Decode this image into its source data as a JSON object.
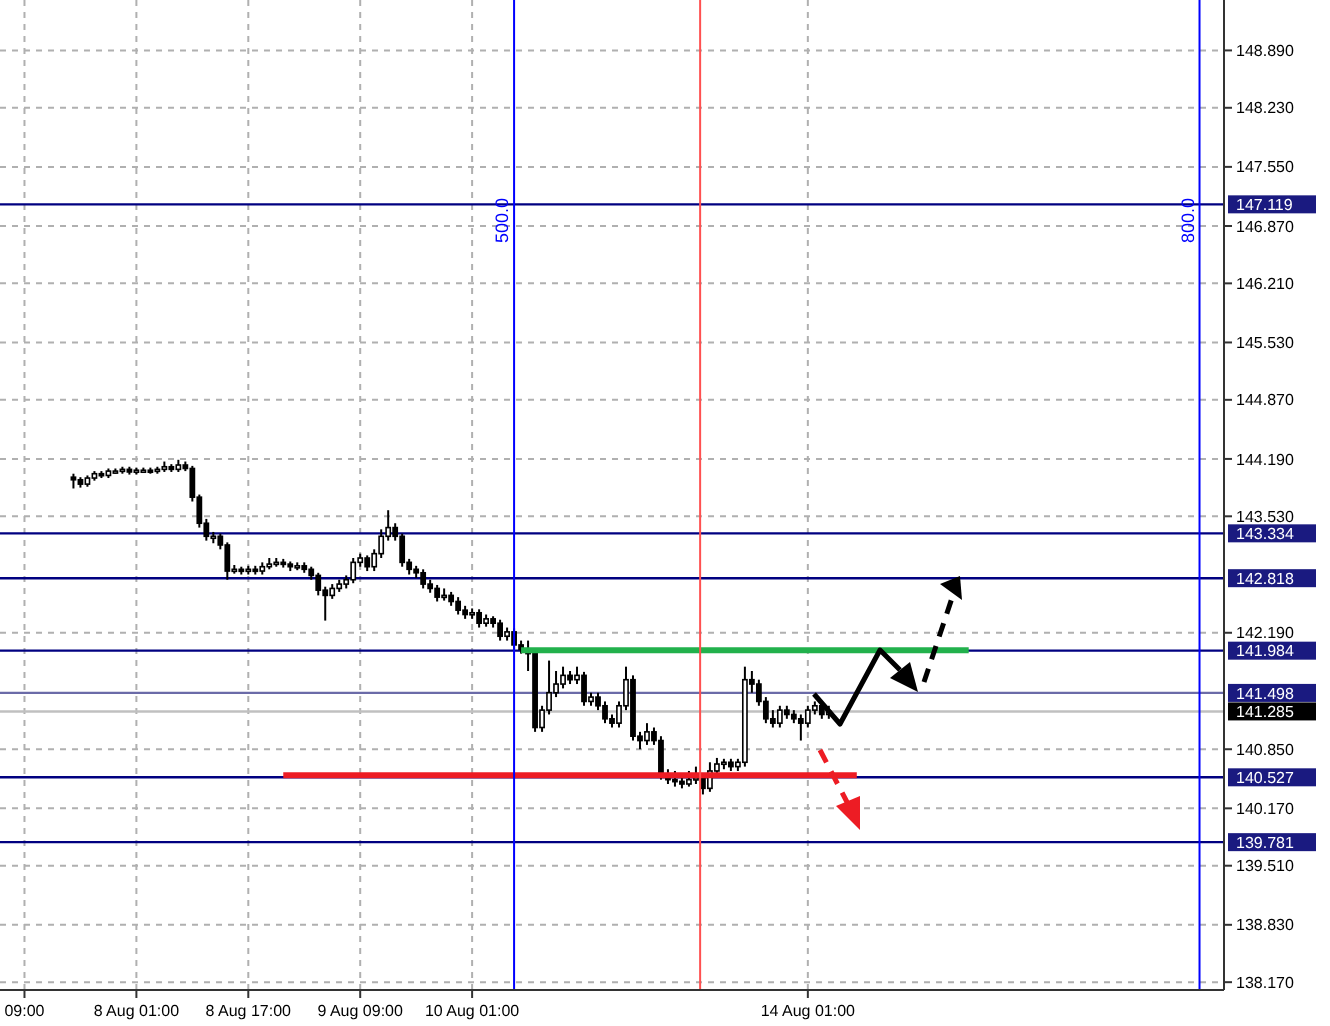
{
  "chart_data": {
    "type": "candlestick",
    "color": "#000000",
    "categories": [
      "09:00",
      null,
      null,
      null,
      null,
      null,
      null,
      null,
      null,
      null,
      null,
      null,
      null,
      null,
      null,
      null,
      "8 Aug 01:00",
      null,
      null,
      null,
      null,
      null,
      null,
      null,
      null,
      null,
      null,
      null,
      null,
      null,
      null,
      null,
      "8 Aug 17:00",
      null,
      null,
      null,
      null,
      null,
      null,
      null,
      null,
      null,
      null,
      null,
      null,
      null,
      null,
      null,
      "9 Aug 09:00",
      null,
      null,
      null,
      null,
      null,
      null,
      null,
      null,
      null,
      null,
      null,
      null,
      null,
      null,
      null,
      "10 Aug 01:00",
      null,
      null,
      null,
      null,
      null,
      null,
      null,
      null,
      null,
      null,
      null,
      null,
      null,
      null,
      null,
      null,
      null,
      null,
      null,
      null,
      null,
      null,
      null,
      null,
      null,
      null,
      null,
      null,
      null,
      null,
      null,
      null,
      null,
      null,
      null,
      null,
      null,
      null,
      null,
      null,
      null,
      null,
      null,
      null,
      null,
      null,
      null,
      "14 Aug 01:00",
      null,
      null,
      null,
      null,
      null,
      null,
      null,
      null,
      null,
      null,
      null,
      null,
      null,
      null,
      null,
      null,
      null,
      null,
      null,
      null,
      null,
      null,
      null,
      null,
      null,
      null,
      null,
      null,
      null,
      null,
      null,
      null,
      null,
      null,
      null,
      null,
      null,
      null,
      null,
      null,
      null,
      null,
      null,
      null,
      null,
      null,
      null,
      null,
      null,
      null,
      null,
      null,
      null,
      null,
      null,
      null,
      null,
      null,
      null
    ],
    "ohlc": [
      null,
      null,
      null,
      null,
      null,
      null,
      null,
      [
        143.98,
        144.02,
        143.85,
        143.95
      ],
      [
        143.95,
        143.98,
        143.86,
        143.9
      ],
      [
        143.9,
        144.0,
        143.87,
        143.97
      ],
      [
        143.97,
        144.05,
        143.94,
        144.02
      ],
      [
        144.02,
        144.05,
        143.97,
        144.0
      ],
      [
        144.0,
        144.08,
        143.97,
        144.05
      ],
      [
        144.05,
        144.08,
        144.02,
        144.05
      ],
      [
        144.05,
        144.1,
        144.02,
        144.07
      ],
      [
        144.07,
        144.1,
        144.01,
        144.04
      ],
      [
        144.04,
        144.09,
        144.01,
        144.06
      ],
      [
        144.06,
        144.09,
        144.03,
        144.06
      ],
      [
        144.06,
        144.09,
        144.02,
        144.05
      ],
      [
        144.05,
        144.1,
        144.02,
        144.07
      ],
      [
        144.07,
        144.16,
        144.04,
        144.1
      ],
      [
        144.1,
        144.13,
        144.04,
        144.07
      ],
      [
        144.07,
        144.18,
        144.04,
        144.12
      ],
      [
        144.12,
        144.16,
        144.05,
        144.08
      ],
      [
        144.08,
        144.11,
        143.7,
        143.75
      ],
      [
        143.75,
        143.78,
        143.4,
        143.45
      ],
      [
        143.45,
        143.5,
        143.25,
        143.3
      ],
      [
        143.3,
        143.35,
        143.22,
        143.3
      ],
      [
        143.3,
        143.33,
        143.15,
        143.2
      ],
      [
        143.2,
        143.23,
        142.8,
        142.9
      ],
      [
        142.9,
        142.97,
        142.87,
        142.92
      ],
      [
        142.92,
        142.95,
        142.86,
        142.9
      ],
      [
        142.9,
        142.96,
        142.86,
        142.92
      ],
      [
        142.92,
        142.96,
        142.86,
        142.9
      ],
      [
        142.9,
        143.0,
        142.86,
        142.95
      ],
      [
        142.95,
        143.05,
        142.92,
        142.98
      ],
      [
        142.98,
        143.05,
        142.95,
        143.0
      ],
      [
        143.0,
        143.04,
        142.94,
        142.98
      ],
      [
        142.98,
        143.01,
        142.9,
        142.95
      ],
      [
        142.95,
        143.0,
        142.91,
        142.96
      ],
      [
        142.96,
        143.0,
        142.88,
        142.92
      ],
      [
        142.92,
        142.95,
        142.8,
        142.85
      ],
      [
        142.85,
        142.88,
        142.62,
        142.68
      ],
      [
        142.68,
        142.72,
        142.33,
        142.62
      ],
      [
        142.62,
        142.75,
        142.58,
        142.7
      ],
      [
        142.7,
        142.8,
        142.66,
        142.75
      ],
      [
        142.75,
        142.85,
        142.7,
        142.8
      ],
      [
        142.8,
        143.05,
        142.76,
        143.0
      ],
      [
        143.0,
        143.1,
        142.95,
        143.05
      ],
      [
        143.05,
        143.08,
        142.9,
        142.95
      ],
      [
        142.95,
        143.15,
        142.9,
        143.1
      ],
      [
        143.1,
        143.38,
        143.05,
        143.3
      ],
      [
        143.3,
        143.6,
        143.25,
        143.4
      ],
      [
        143.4,
        143.45,
        143.25,
        143.3
      ],
      [
        143.3,
        143.33,
        142.95,
        143.0
      ],
      [
        143.0,
        143.04,
        142.86,
        142.92
      ],
      [
        142.92,
        142.96,
        142.82,
        142.88
      ],
      [
        142.88,
        142.92,
        142.7,
        142.75
      ],
      [
        142.75,
        142.8,
        142.65,
        142.7
      ],
      [
        142.7,
        142.74,
        142.55,
        142.6
      ],
      [
        142.6,
        142.7,
        142.56,
        142.62
      ],
      [
        142.62,
        142.66,
        142.5,
        142.55
      ],
      [
        142.55,
        142.6,
        142.4,
        142.45
      ],
      [
        142.45,
        142.5,
        142.35,
        142.4
      ],
      [
        142.4,
        142.47,
        142.35,
        142.42
      ],
      [
        142.42,
        142.46,
        142.25,
        142.3
      ],
      [
        142.3,
        142.4,
        142.26,
        142.35
      ],
      [
        142.35,
        142.38,
        142.25,
        142.3
      ],
      [
        142.3,
        142.34,
        142.1,
        142.15
      ],
      [
        142.15,
        142.25,
        142.1,
        142.2
      ],
      [
        142.2,
        142.24,
        142.0,
        142.05
      ],
      [
        142.05,
        142.1,
        141.95,
        142.0
      ],
      [
        142.0,
        142.1,
        141.75,
        141.95
      ],
      [
        141.95,
        142.0,
        141.05,
        141.1
      ],
      [
        141.1,
        141.35,
        141.05,
        141.3
      ],
      [
        141.3,
        141.87,
        141.25,
        141.5
      ],
      [
        141.5,
        141.75,
        141.45,
        141.6
      ],
      [
        141.6,
        141.8,
        141.55,
        141.7
      ],
      [
        141.7,
        141.75,
        141.6,
        141.65
      ],
      [
        141.65,
        141.8,
        141.6,
        141.7
      ],
      [
        141.7,
        141.74,
        141.35,
        141.4
      ],
      [
        141.4,
        141.5,
        141.35,
        141.45
      ],
      [
        141.45,
        141.5,
        141.3,
        141.35
      ],
      [
        141.35,
        141.4,
        141.15,
        141.2
      ],
      [
        141.2,
        141.25,
        141.1,
        141.15
      ],
      [
        141.15,
        141.4,
        141.1,
        141.35
      ],
      [
        141.35,
        141.8,
        141.3,
        141.65
      ],
      [
        141.65,
        141.7,
        140.95,
        141.0
      ],
      [
        141.0,
        141.05,
        140.85,
        140.95
      ],
      [
        140.95,
        141.15,
        140.9,
        141.05
      ],
      [
        141.05,
        141.1,
        140.9,
        140.95
      ],
      [
        140.95,
        141.0,
        140.5,
        140.55
      ],
      [
        140.55,
        140.62,
        140.45,
        140.5
      ],
      [
        140.5,
        140.6,
        140.42,
        140.48
      ],
      [
        140.48,
        140.55,
        140.4,
        140.45
      ],
      [
        140.45,
        140.6,
        140.42,
        140.5
      ],
      [
        140.5,
        140.65,
        140.45,
        140.52
      ],
      [
        140.52,
        140.56,
        140.33,
        140.4
      ],
      [
        140.4,
        140.7,
        140.36,
        140.6
      ],
      [
        140.6,
        140.75,
        140.55,
        140.68
      ],
      [
        140.68,
        140.74,
        140.62,
        140.7
      ],
      [
        140.7,
        140.74,
        140.6,
        140.65
      ],
      [
        140.65,
        140.74,
        140.6,
        140.7
      ],
      [
        140.7,
        141.8,
        140.65,
        141.65
      ],
      [
        141.65,
        141.75,
        141.5,
        141.6
      ],
      [
        141.6,
        141.65,
        141.35,
        141.4
      ],
      [
        141.4,
        141.45,
        141.15,
        141.2
      ],
      [
        141.2,
        141.3,
        141.1,
        141.15
      ],
      [
        141.15,
        141.35,
        141.1,
        141.3
      ],
      [
        141.3,
        141.35,
        141.2,
        141.25
      ],
      [
        141.25,
        141.3,
        141.15,
        141.2
      ],
      [
        141.2,
        141.25,
        140.95,
        141.15
      ],
      [
        141.15,
        141.35,
        141.1,
        141.3
      ],
      [
        141.3,
        141.4,
        141.25,
        141.35
      ],
      [
        141.35,
        141.4,
        141.2,
        141.25
      ],
      [
        141.25,
        141.35,
        141.2,
        141.285
      ],
      null,
      null,
      null,
      null,
      null,
      null,
      null,
      null,
      null,
      null,
      null,
      null,
      null,
      null,
      null,
      null,
      null,
      null,
      null,
      null,
      null,
      null,
      null,
      null,
      null,
      null,
      null,
      null,
      null,
      null,
      null,
      null,
      null,
      null,
      null,
      null,
      null,
      null,
      null,
      null,
      null,
      null,
      null,
      null,
      null,
      null,
      null,
      null,
      null,
      null,
      null,
      null,
      null,
      null,
      null,
      null
    ],
    "series": [
      {
        "type": "line",
        "color": "#22b14c",
        "values": [
          null,
          null,
          null,
          null,
          null,
          null,
          null,
          null,
          null,
          null,
          null,
          null,
          null,
          null,
          null,
          null,
          null,
          null,
          null,
          null,
          null,
          null,
          null,
          null,
          null,
          null,
          null,
          null,
          null,
          null,
          null,
          null,
          null,
          null,
          null,
          null,
          null,
          null,
          null,
          null,
          null,
          null,
          null,
          null,
          null,
          null,
          null,
          null,
          null,
          null,
          null,
          null,
          null,
          null,
          null,
          null,
          null,
          null,
          null,
          null,
          null,
          null,
          null,
          null,
          null,
          null,
          null,
          null,
          null,
          null,
          null,
          141.99,
          141.99,
          141.99,
          141.99,
          141.99,
          141.99,
          141.99,
          141.99,
          141.99,
          141.99,
          141.99,
          141.99,
          141.99,
          141.99,
          141.99,
          141.99,
          141.99,
          141.99,
          141.99,
          141.99,
          141.99,
          141.99,
          141.99,
          141.99,
          141.99,
          141.99,
          141.99,
          141.99,
          141.99,
          141.99,
          141.99,
          141.99,
          141.99,
          141.99,
          141.99,
          141.99,
          141.99,
          141.99,
          141.99,
          141.99,
          141.99,
          141.99,
          141.99,
          141.99,
          141.99,
          141.99,
          141.99,
          141.99,
          141.99,
          141.99,
          141.99,
          141.99,
          141.99,
          141.99,
          141.99,
          141.99,
          141.99,
          141.99,
          141.99,
          141.99,
          141.99,
          141.99,
          141.99,
          141.99,
          141.99,
          null,
          null,
          null,
          null,
          null,
          null,
          null,
          null,
          null,
          null,
          null,
          null,
          null,
          null,
          null,
          null,
          null,
          null,
          null,
          null,
          null,
          null,
          null,
          null,
          null,
          null,
          null,
          null,
          null,
          null,
          null,
          null,
          null,
          null,
          null,
          null
        ]
      },
      {
        "type": "line",
        "color": "#ed1c24",
        "values": [
          null,
          null,
          null,
          null,
          null,
          null,
          null,
          null,
          null,
          null,
          null,
          null,
          null,
          null,
          null,
          null,
          null,
          null,
          null,
          null,
          null,
          null,
          null,
          null,
          null,
          null,
          null,
          null,
          null,
          null,
          null,
          null,
          null,
          null,
          null,
          null,
          null,
          140.55,
          140.55,
          140.55,
          140.55,
          140.55,
          140.55,
          140.55,
          140.55,
          140.55,
          140.55,
          140.55,
          140.55,
          140.55,
          140.55,
          140.55,
          140.55,
          140.55,
          140.55,
          140.55,
          140.55,
          140.55,
          140.55,
          140.55,
          140.55,
          140.55,
          140.55,
          140.55,
          140.55,
          140.55,
          140.55,
          140.55,
          140.55,
          140.55,
          140.55,
          140.55,
          140.55,
          140.55,
          140.55,
          140.55,
          140.55,
          140.55,
          140.55,
          140.55,
          140.55,
          140.55,
          140.55,
          140.55,
          140.55,
          140.55,
          140.55,
          140.55,
          140.55,
          140.55,
          140.55,
          140.55,
          140.55,
          140.55,
          140.55,
          140.55,
          140.55,
          140.55,
          140.55,
          140.55,
          140.55,
          140.55,
          140.55,
          140.55,
          140.55,
          140.55,
          140.55,
          140.55,
          140.55,
          140.55,
          140.55,
          140.55,
          140.55,
          140.55,
          140.55,
          140.55,
          140.55,
          140.55,
          140.55,
          140.55,
          null,
          null,
          null,
          null,
          null,
          null,
          null,
          null,
          null,
          null,
          null,
          null,
          null,
          null,
          null,
          null,
          null,
          null,
          null,
          null,
          null,
          null,
          null,
          null,
          null,
          null,
          null,
          null,
          null,
          null,
          null,
          null,
          null,
          null,
          null,
          null,
          null,
          null,
          null,
          null,
          null,
          null,
          null,
          null,
          null,
          null,
          null,
          null,
          null,
          null,
          null,
          null
        ]
      }
    ],
    "ylim": [
      138.08,
      149.47
    ],
    "yticks": [
      {
        "value": 148.89,
        "label": "148.890"
      },
      {
        "value": 148.23,
        "label": "148.230"
      },
      {
        "value": 147.55,
        "label": "147.550"
      },
      {
        "value": 146.87,
        "label": "146.870"
      },
      {
        "value": 146.21,
        "label": "146.210"
      },
      {
        "value": 145.53,
        "label": "145.530"
      },
      {
        "value": 144.87,
        "label": "144.870"
      },
      {
        "value": 144.19,
        "label": "144.190"
      },
      {
        "value": 143.53,
        "label": "143.530"
      },
      {
        "value": 142.19,
        "label": "142.190"
      },
      {
        "value": 140.85,
        "label": "140.850"
      },
      {
        "value": 140.17,
        "label": "140.170"
      },
      {
        "value": 139.51,
        "label": "139.510"
      },
      {
        "value": 138.83,
        "label": "138.830"
      },
      {
        "value": 138.17,
        "label": "138.170"
      }
    ],
    "grid": true,
    "annotations": [
      "500.0",
      "800.0"
    ],
    "ref_lines": [
      {
        "axis": "y",
        "value": 147.119,
        "label": "147.119",
        "color": "#000080"
      },
      {
        "axis": "y",
        "value": 143.334,
        "label": "143.334",
        "color": "#000080"
      },
      {
        "axis": "y",
        "value": 142.818,
        "label": "142.818",
        "color": "#000080"
      },
      {
        "axis": "y",
        "value": 141.984,
        "label": "141.984",
        "color": "#000080"
      },
      {
        "axis": "y",
        "value": 141.498,
        "label": "141.498",
        "color": "#6b6ba8"
      },
      {
        "axis": "y",
        "value": 141.285,
        "label": "141.285",
        "color": "#c0c0c0"
      },
      {
        "axis": "y",
        "value": 140.527,
        "label": "140.527",
        "color": "#000080"
      },
      {
        "axis": "y",
        "value": 139.781,
        "label": "139.781",
        "color": "#000080"
      }
    ]
  }
}
